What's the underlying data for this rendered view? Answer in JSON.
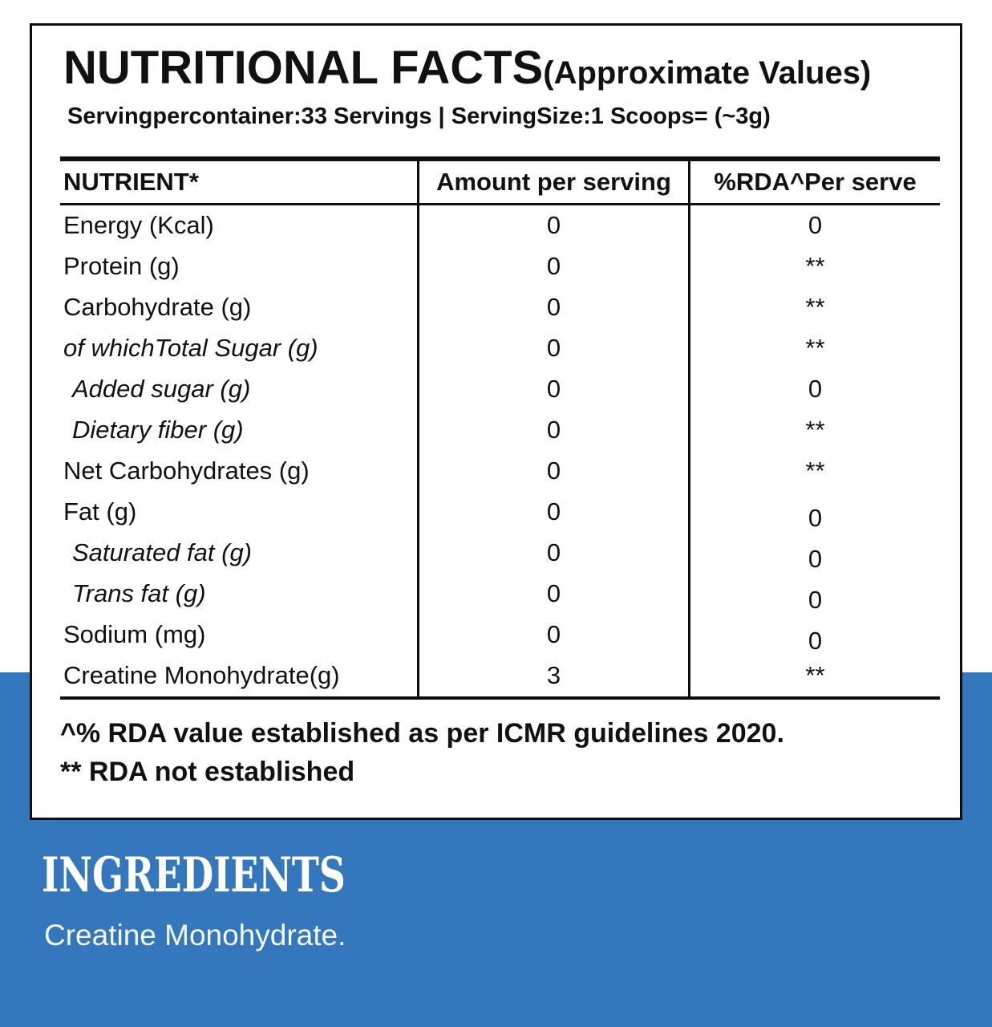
{
  "colors": {
    "accent_blue": "#3577BD",
    "ink": "#111111"
  },
  "label": {
    "title": "NUTRITIONAL FACTS",
    "title_note": "(Approximate Values)",
    "serving_info": "Servingpercontainer:33 Servings | ServingSize:1 Scoops= (~3g)",
    "table": {
      "columns": [
        "NUTRIENT*",
        "Amount per serving",
        "%RDA^Per serve"
      ],
      "rows": [
        {
          "nutrient": "Energy (Kcal)",
          "amount": "0",
          "rda": "0",
          "italic": false,
          "indent": false
        },
        {
          "nutrient": "Protein (g)",
          "amount": "0",
          "rda": "**",
          "italic": false,
          "indent": false
        },
        {
          "nutrient": "Carbohydrate (g)",
          "amount": "0",
          "rda": "**",
          "italic": false,
          "indent": false
        },
        {
          "nutrient": "of whichTotal Sugar (g)",
          "amount": "0",
          "rda": "**",
          "italic": true,
          "indent": false
        },
        {
          "nutrient": "Added sugar (g)",
          "amount": "0",
          "rda": "0",
          "italic": true,
          "indent": true
        },
        {
          "nutrient": "Dietary fiber (g)",
          "amount": "0",
          "rda": "**",
          "italic": true,
          "indent": true
        },
        {
          "nutrient": "Net Carbohydrates (g)",
          "amount": "0",
          "rda": "**",
          "italic": false,
          "indent": false
        },
        {
          "nutrient": "Fat (g)",
          "amount": "0",
          "rda": "0",
          "italic": false,
          "indent": false
        },
        {
          "nutrient": "Saturated fat (g)",
          "amount": "0",
          "rda": "0",
          "italic": true,
          "indent": true
        },
        {
          "nutrient": "Trans fat (g)",
          "amount": "0",
          "rda": "0",
          "italic": true,
          "indent": true
        },
        {
          "nutrient": "Sodium (mg)",
          "amount": "0",
          "rda": "0",
          "italic": false,
          "indent": false
        },
        {
          "nutrient": "Creatine Monohydrate(g)",
          "amount": "3",
          "rda": "**",
          "italic": false,
          "indent": false
        }
      ]
    },
    "footnotes": [
      "^% RDA value established as per ICMR guidelines 2020.",
      "** RDA not established"
    ]
  },
  "ingredients": {
    "heading": "INGREDIENTS",
    "text": "Creatine Monohydrate."
  }
}
